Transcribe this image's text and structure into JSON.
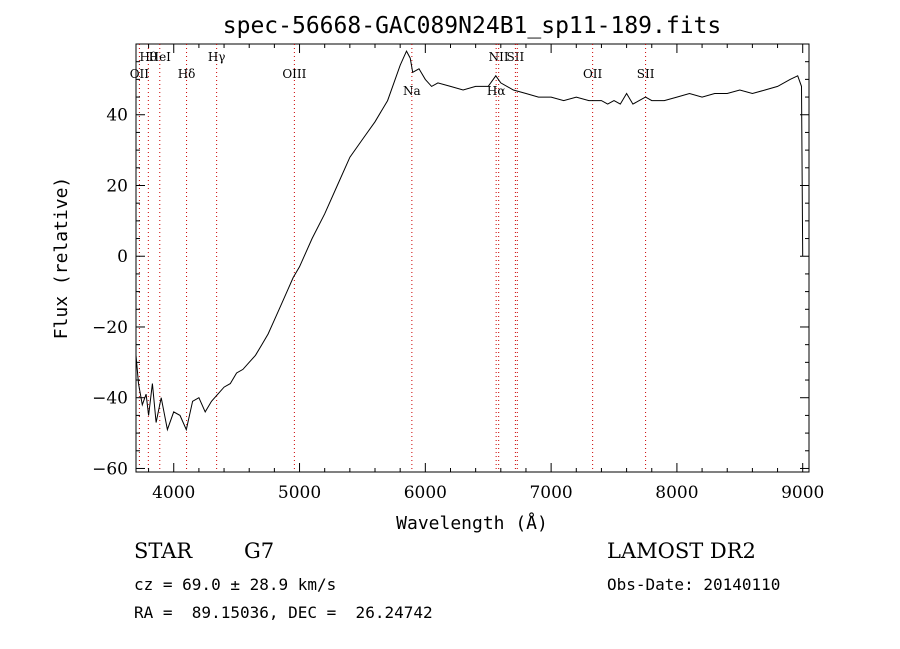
{
  "chart_data": {
    "type": "line",
    "title": "spec-56668-GAC089N24B1_sp11-189.fits",
    "xlabel": "Wavelength (Å)",
    "ylabel": "Flux (relative)",
    "xlim": [
      3700,
      9050
    ],
    "ylim": [
      -61,
      60
    ],
    "xticks_major": [
      4000,
      5000,
      6000,
      7000,
      8000,
      9000
    ],
    "yticks_major": [
      -60,
      -40,
      -20,
      0,
      20,
      40
    ],
    "xtick_labels": [
      "4000",
      "5000",
      "6000",
      "7000",
      "8000",
      "9000"
    ],
    "ytick_labels": [
      "−60",
      "−40",
      "−20",
      "0",
      "20",
      "40"
    ],
    "grid": false,
    "line_color": "#000000",
    "marker_color": "#cc0000",
    "series": [
      {
        "x": [
          3700,
          3720,
          3750,
          3780,
          3800,
          3830,
          3860,
          3900,
          3950,
          4000,
          4050,
          4100,
          4150,
          4200,
          4250,
          4300,
          4350,
          4400,
          4450,
          4500,
          4550,
          4600,
          4650,
          4700,
          4750,
          4800,
          4850,
          4900,
          4950,
          5000,
          5100,
          5200,
          5300,
          5400,
          5500,
          5600,
          5700,
          5750,
          5800,
          5850,
          5880,
          5900,
          5950,
          6000,
          6050,
          6100,
          6200,
          6300,
          6400,
          6500,
          6560,
          6600,
          6700,
          6800,
          6900,
          7000,
          7100,
          7200,
          7300,
          7400,
          7450,
          7500,
          7550,
          7600,
          7650,
          7700,
          7750,
          7800,
          7900,
          8000,
          8100,
          8200,
          8300,
          8400,
          8500,
          8600,
          8700,
          8800,
          8900,
          8960,
          8990,
          9000
        ],
        "y": [
          -28,
          -36,
          -42,
          -39,
          -45,
          -36,
          -47,
          -40,
          -49,
          -44,
          -45,
          -49,
          -41,
          -40,
          -44,
          -41,
          -39,
          -37,
          -36,
          -33,
          -32,
          -30,
          -28,
          -25,
          -22,
          -18,
          -14,
          -10,
          -6,
          -3,
          5,
          12,
          20,
          28,
          33,
          38,
          44,
          49,
          54,
          58,
          56,
          52,
          53,
          50,
          48,
          49,
          48,
          47,
          48,
          48,
          51,
          49,
          47,
          46,
          45,
          45,
          44,
          45,
          44,
          44,
          43,
          44,
          43,
          46,
          43,
          44,
          45,
          44,
          44,
          45,
          46,
          45,
          46,
          46,
          47,
          46,
          47,
          48,
          50,
          51,
          48,
          0
        ]
      }
    ],
    "line_markers": [
      {
        "label": "Hθ",
        "wavelength": 3798
      },
      {
        "label": "OII",
        "wavelength": 3727
      },
      {
        "label": "HeI",
        "wavelength": 3889
      },
      {
        "label": "Hδ",
        "wavelength": 4102
      },
      {
        "label": "Hγ",
        "wavelength": 4341
      },
      {
        "label": "OIII",
        "wavelength": 4959
      },
      {
        "label": "Na",
        "wavelength": 5893
      },
      {
        "label": "NII",
        "wavelength": 6583
      },
      {
        "label": "SII",
        "wavelength": 6716
      },
      {
        "label": "Hα",
        "wavelength": 6563
      },
      {
        "label": "OII",
        "wavelength": 7330
      },
      {
        "label": "SII",
        "wavelength": 7751
      },
      {
        "label": "",
        "wavelength": 6731
      }
    ]
  },
  "info": {
    "class_label": "STAR",
    "subclass": "G7",
    "survey": "LAMOST DR2",
    "velocity": "cz = 69.0 ± 28.9 km/s",
    "obs_date": "Obs-Date: 20140110",
    "coords": "RA =  89.15036, DEC =  26.24742"
  }
}
